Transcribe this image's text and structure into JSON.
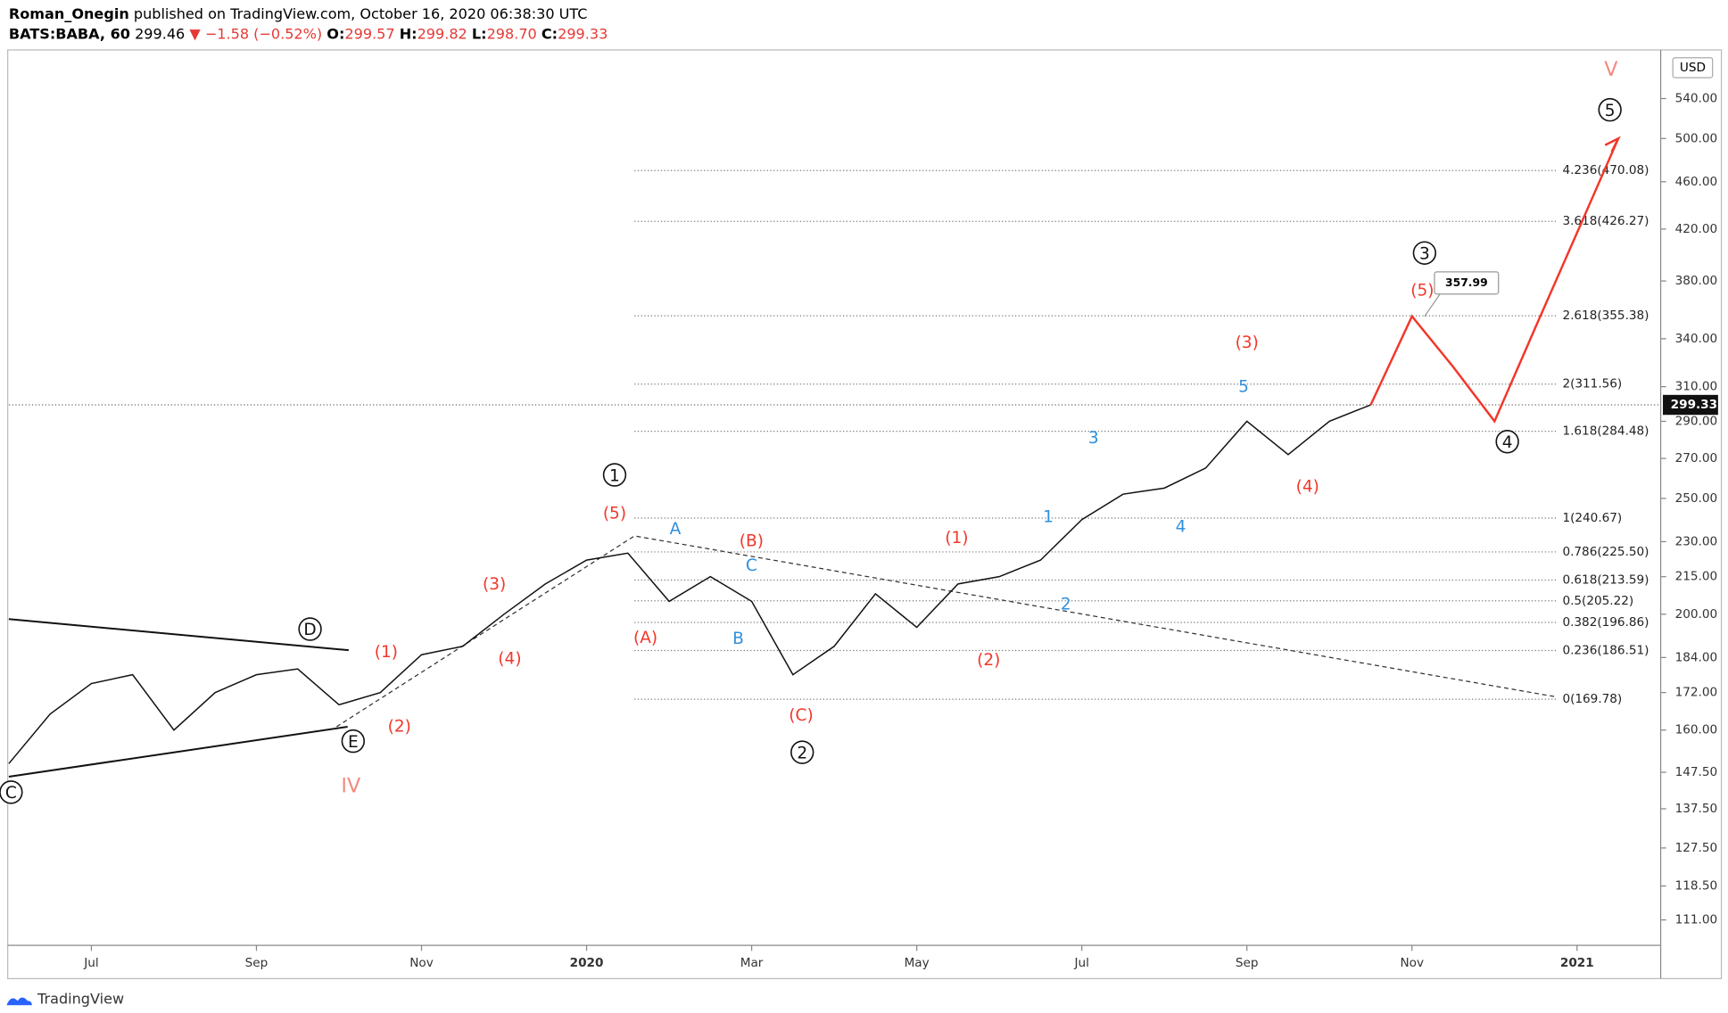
{
  "header": {
    "author": "Roman_Onegin",
    "published": "published on TradingView.com, October 16, 2020 06:38:30 UTC",
    "symbol": "BATS:BABA, 60",
    "price": "299.46",
    "change": "▼ −1.58 (−0.52%)",
    "ohlc": [
      [
        "O:",
        "299.57"
      ],
      [
        "H:",
        "299.82"
      ],
      [
        "L:",
        "298.70"
      ],
      [
        "C:",
        "299.33"
      ]
    ]
  },
  "chart_data": {
    "type": "line",
    "categories": [
      null,
      null,
      "Jul",
      null,
      null,
      null,
      "Sep",
      null,
      null,
      null,
      "Nov",
      null,
      null,
      null,
      "2020",
      null,
      null,
      null,
      "Mar",
      null,
      null,
      null,
      "May",
      null,
      null,
      null,
      "Jul",
      null,
      null,
      null,
      "Sep",
      null,
      null,
      null,
      "Nov",
      null,
      null,
      null,
      "2021",
      null,
      null
    ],
    "series": [
      {
        "color": "#111111",
        "values": [
          150,
          165,
          175,
          178,
          160,
          172,
          178,
          180,
          168,
          172,
          185,
          188,
          200,
          212,
          222,
          225,
          205,
          215,
          205,
          178,
          188,
          208,
          195,
          212,
          215,
          222,
          240,
          252,
          255,
          265,
          290,
          272,
          290,
          299.33,
          null,
          null,
          null,
          null,
          null,
          null,
          null
        ]
      },
      {
        "color": "#f2372b",
        "values": [
          null,
          null,
          null,
          null,
          null,
          null,
          null,
          null,
          null,
          null,
          null,
          null,
          null,
          null,
          null,
          null,
          null,
          null,
          null,
          null,
          null,
          null,
          null,
          null,
          null,
          null,
          null,
          null,
          null,
          null,
          null,
          null,
          null,
          299.33,
          355,
          322,
          290,
          348,
          417,
          500,
          null
        ]
      }
    ],
    "ylim": [
      105.7,
      593
    ],
    "log_scale": true,
    "yticks": [
      {
        "value": 111,
        "label": "111.00"
      },
      {
        "value": 118.5,
        "label": "118.50"
      },
      {
        "value": 127.5,
        "label": "127.50"
      },
      {
        "value": 137.5,
        "label": "137.50"
      },
      {
        "value": 147.5,
        "label": "147.50"
      },
      {
        "value": 160,
        "label": "160.00"
      },
      {
        "value": 172,
        "label": "172.00"
      },
      {
        "value": 184,
        "label": "184.00"
      },
      {
        "value": 200,
        "label": "200.00"
      },
      {
        "value": 215,
        "label": "215.00"
      },
      {
        "value": 230,
        "label": "230.00"
      },
      {
        "value": 250,
        "label": "250.00"
      },
      {
        "value": 270,
        "label": "270.00"
      },
      {
        "value": 290,
        "label": "290.00"
      },
      {
        "value": 310,
        "label": "310.00"
      },
      {
        "value": 340,
        "label": "340.00"
      },
      {
        "value": 380,
        "label": "380.00"
      },
      {
        "value": 420,
        "label": "420.00"
      },
      {
        "value": 460,
        "label": "460.00"
      },
      {
        "value": 500,
        "label": "500.00"
      },
      {
        "value": 540,
        "label": "540.00"
      }
    ],
    "currency": "USD",
    "last_price": 299.33,
    "callout": 357.99,
    "fib_levels": [
      {
        "value": 470.08,
        "label": "4.236(470.08)"
      },
      {
        "value": 426.27,
        "label": "3.618(426.27)"
      },
      {
        "value": 355.38,
        "label": "2.618(355.38)"
      },
      {
        "value": 311.56,
        "label": "2(311.56)"
      },
      {
        "value": 284.48,
        "label": "1.618(284.48)"
      },
      {
        "value": 240.67,
        "label": "1(240.67)"
      },
      {
        "value": 225.5,
        "label": "0.786(225.50)"
      },
      {
        "value": 213.59,
        "label": "0.618(213.59)"
      },
      {
        "value": 205.22,
        "label": "0.5(205.22)"
      },
      {
        "value": 196.86,
        "label": "0.382(196.86)"
      },
      {
        "value": 186.51,
        "label": "0.236(186.51)"
      },
      {
        "value": 169.78,
        "label": "0(169.78)"
      }
    ],
    "annotations": {
      "circled": [
        "1",
        "2",
        "3",
        "4",
        "5",
        "D",
        "E",
        "C"
      ],
      "red": [
        "(5)",
        "(3)",
        "(4)",
        "(1)",
        "(2)",
        "(A)",
        "(B)",
        "(C)",
        "(1)",
        "(2)",
        "(3)",
        "(4)",
        "(5)"
      ],
      "pink": [
        "IV",
        "V"
      ],
      "blue": [
        "A",
        "C",
        "B",
        "1",
        "2",
        "3",
        "4",
        "5"
      ]
    }
  },
  "footer": {
    "brand": "TradingView"
  }
}
